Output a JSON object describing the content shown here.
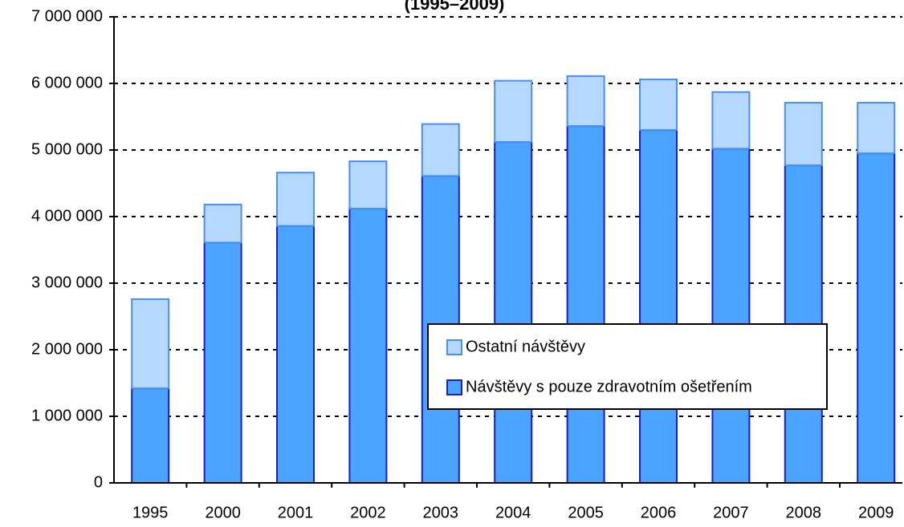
{
  "chart_data": {
    "type": "stacked_bar",
    "title": "(1995–2009)",
    "categories": [
      "1995",
      "2000",
      "2001",
      "2002",
      "2003",
      "2004",
      "2005",
      "2006",
      "2007",
      "2008",
      "2009"
    ],
    "series": [
      {
        "name": "Návštěvy s pouze zdravotním ošetřením",
        "color": "#4aa3ff",
        "values": [
          1420000,
          3610000,
          3860000,
          4120000,
          4610000,
          5120000,
          5360000,
          5300000,
          5020000,
          4770000,
          4950000
        ]
      },
      {
        "name": "Ostatní návštěvy",
        "color": "#b4d8ff",
        "values": [
          1340000,
          570000,
          800000,
          710000,
          780000,
          920000,
          750000,
          760000,
          850000,
          940000,
          760000
        ]
      }
    ],
    "ylim": [
      0,
      7000000
    ],
    "yticks": [
      0,
      {
        "value": 1000000,
        "label": "1 000 000"
      },
      {
        "value": 2000000,
        "label": "2 000 000"
      },
      {
        "value": 3000000,
        "label": "3 000 000"
      },
      {
        "value": 4000000,
        "label": "4 000 000"
      },
      {
        "value": 5000000,
        "label": "5 000 000"
      },
      {
        "value": 6000000,
        "label": "6 000 000"
      },
      {
        "value": 7000000,
        "label": "7 000 000"
      }
    ],
    "grid": true
  }
}
